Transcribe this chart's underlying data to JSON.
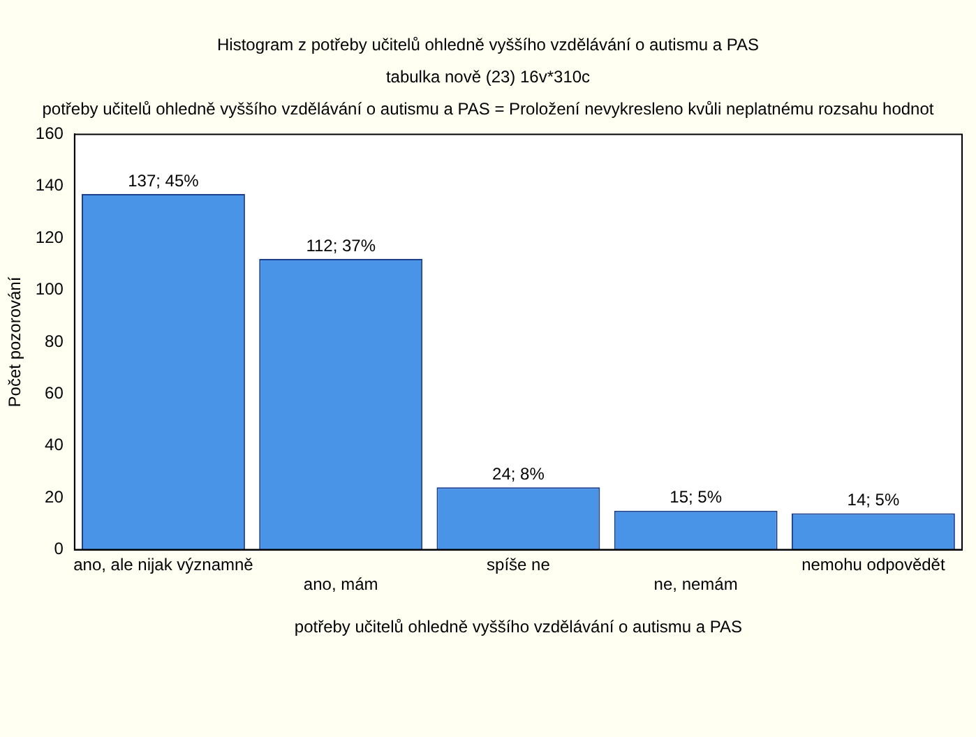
{
  "chart_data": {
    "type": "bar",
    "title": "Histogram z potřeby učitelů ohledně vyššího vzdělávání o autismu a PAS",
    "subtitle": "tabulka nově (23) 16v*310c",
    "annotations": [
      "potřeby učitelů ohledně vyššího vzdělávání o autismu a PAS = Proložení nevykresleno kvůli neplatnému rozsahu hodnot"
    ],
    "xlabel": "potřeby učitelů ohledně vyššího vzdělávání o autismu a PAS",
    "ylabel": "Počet pozorování",
    "categories": [
      "ano, ale nijak významně",
      "ano, mám",
      "spíše ne",
      "ne, nemám",
      "nemohu odpovědět"
    ],
    "values": [
      137,
      112,
      24,
      15,
      14
    ],
    "value_labels": [
      "137; 45%",
      "112; 37%",
      "24; 8%",
      "15; 5%",
      "14; 5%"
    ],
    "color": "#4a94e8",
    "ylim": [
      0,
      160
    ],
    "yticks": [
      0,
      20,
      40,
      60,
      80,
      100,
      120,
      140,
      160
    ],
    "grid": false,
    "legend": false
  }
}
